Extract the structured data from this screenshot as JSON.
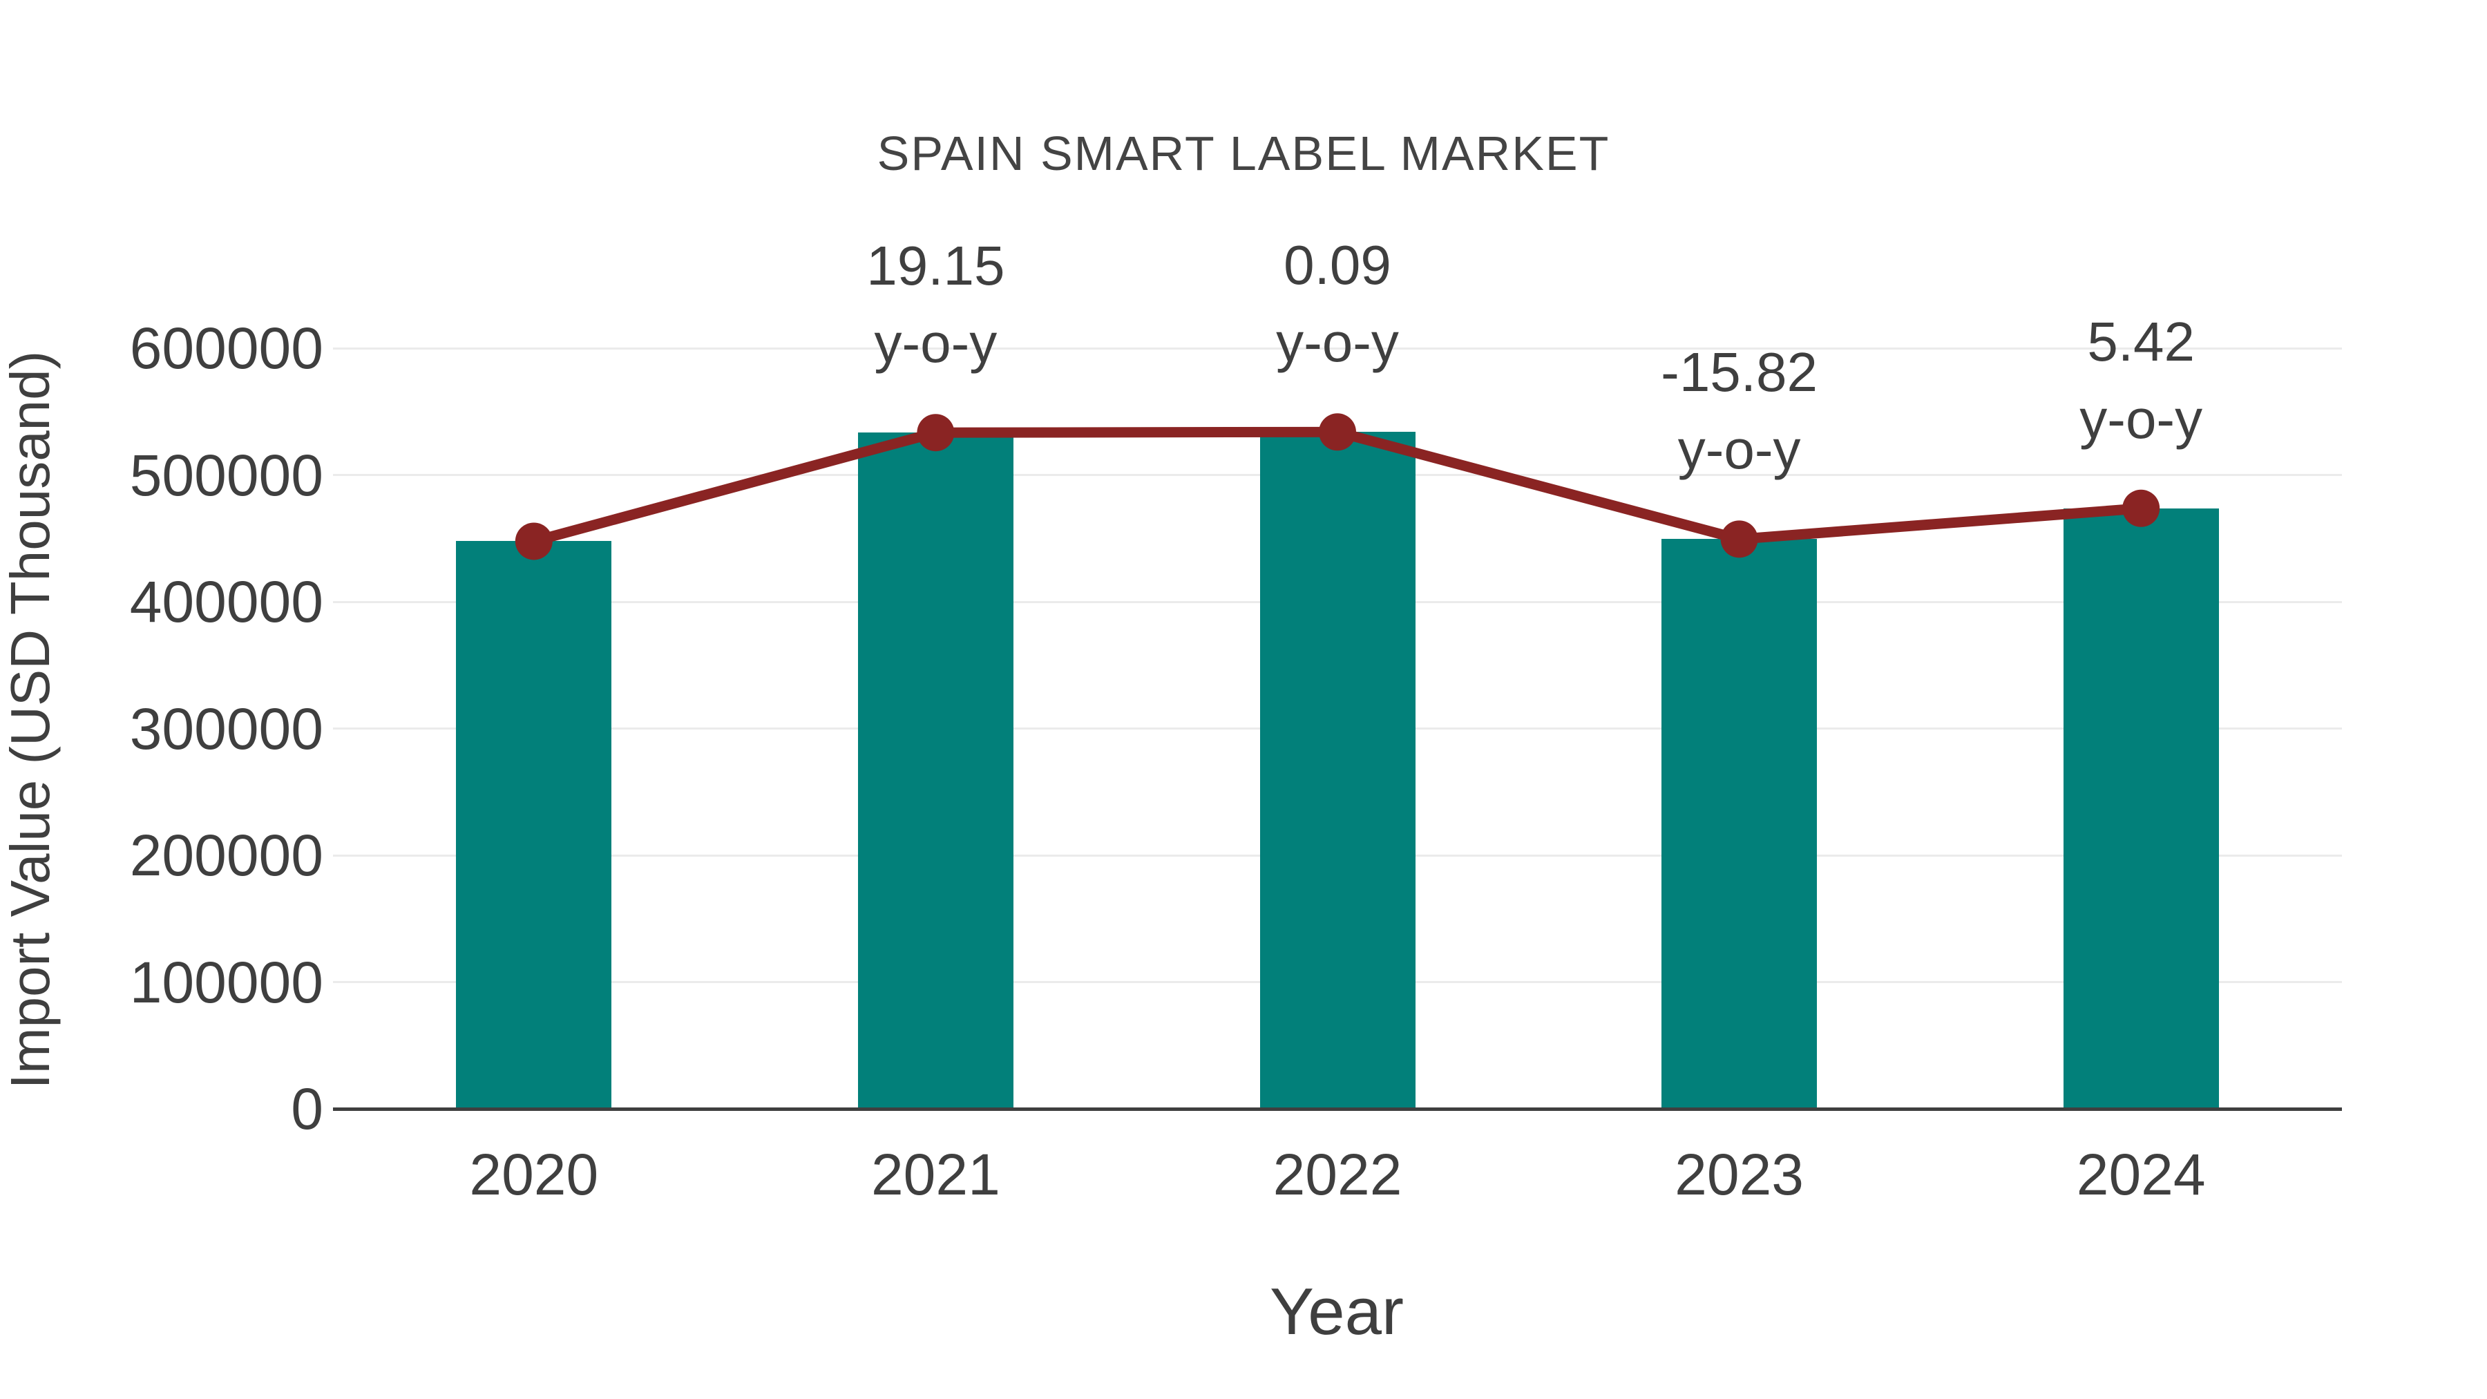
{
  "chart_data": {
    "type": "bar",
    "title": "SPAIN SMART LABEL MARKET",
    "xlabel": "Year",
    "ylabel": "Import Value (USD Thousand)",
    "categories": [
      "2020",
      "2021",
      "2022",
      "2023",
      "2024"
    ],
    "series": [
      {
        "name": "Import Value",
        "type": "bar",
        "values": [
          447700,
          533400,
          533900,
          449400,
          473700
        ]
      },
      {
        "name": "y-o-y growth line",
        "type": "line",
        "values": [
          447700,
          533400,
          533900,
          449400,
          473700
        ],
        "yoy_percent": [
          null,
          19.15,
          0.09,
          -15.82,
          5.42
        ]
      }
    ],
    "annotations": [
      {
        "category": "2021",
        "value_text": "19.15",
        "suffix_text": "y-o-y"
      },
      {
        "category": "2022",
        "value_text": "0.09",
        "suffix_text": "y-o-y"
      },
      {
        "category": "2023",
        "value_text": "-15.82",
        "suffix_text": "y-o-y"
      },
      {
        "category": "2024",
        "value_text": "5.42",
        "suffix_text": "y-o-y"
      }
    ],
    "y_ticks": [
      0,
      100000,
      200000,
      300000,
      400000,
      500000,
      600000
    ],
    "ylim": [
      0,
      650000
    ],
    "grid": true,
    "legend": false
  },
  "colors": {
    "bar": "#02807A",
    "line": "#8A2423",
    "marker": "#8A2423",
    "text": "#3F3F3F",
    "title_text": "#444444",
    "grid": "#EBEBEB",
    "axis": "#3F3F3F",
    "background": "#FFFFFF"
  }
}
